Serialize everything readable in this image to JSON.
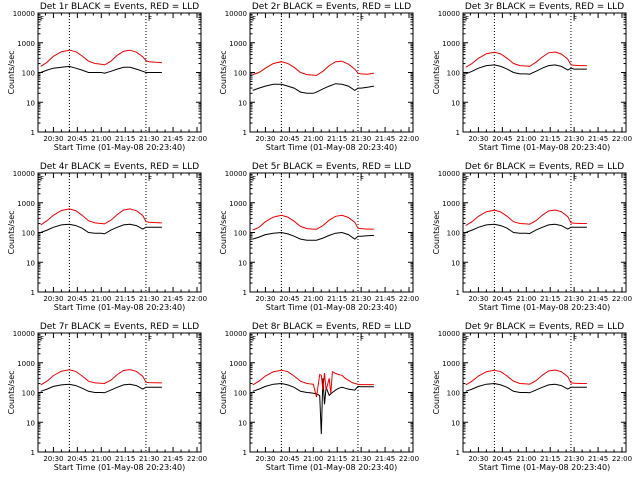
{
  "colors": {
    "events": "#000000",
    "lld": "#ee0000",
    "axes": "#000000",
    "marker": "#000000"
  },
  "x_tick_labels": [
    "20:30",
    "20:45",
    "21:00",
    "21:15",
    "21:30",
    "21:45",
    "22:00"
  ],
  "y_tick_labels": [
    "1",
    "10",
    "100",
    "1000",
    "10000"
  ],
  "y_axis_label": "Counts/sec",
  "chart_data": [
    {
      "type": "line",
      "title": "Det 1r BLACK = Events, RED = LLD",
      "xlabel": "Start Time (01-May-08 20:23:40)",
      "ylabel": "Counts/sec",
      "x_range_minutes": [
        20.33,
        98.0
      ],
      "ylim": [
        1,
        10000
      ],
      "y_scale": "log",
      "marker_label": "F",
      "vertical_lines_minutes": [
        40.0,
        88.0
      ],
      "marker_minutes": 88.0,
      "series": [
        {
          "name": "BLACK = Events",
          "x": [
            22,
            26,
            30,
            35,
            40,
            44,
            48,
            52,
            56,
            60,
            62,
            66,
            70,
            74,
            78,
            82,
            86,
            88,
            90,
            94,
            98
          ],
          "y": [
            100,
            120,
            140,
            150,
            160,
            140,
            120,
            100,
            100,
            100,
            95,
            110,
            130,
            150,
            150,
            130,
            110,
            100,
            100,
            100,
            100
          ]
        },
        {
          "name": "RED = LLD",
          "x": [
            22,
            26,
            30,
            35,
            40,
            44,
            48,
            52,
            56,
            60,
            62,
            66,
            70,
            74,
            78,
            82,
            86,
            88,
            90,
            94,
            98
          ],
          "y": [
            160,
            220,
            350,
            500,
            560,
            500,
            360,
            240,
            200,
            190,
            180,
            240,
            380,
            520,
            560,
            480,
            340,
            250,
            230,
            220,
            215
          ]
        }
      ]
    },
    {
      "type": "line",
      "title": "Det 2r BLACK = Events, RED = LLD",
      "xlabel": "Start Time (01-May-08 20:23:40)",
      "ylabel": "Counts/sec",
      "x_range_minutes": [
        20.33,
        98.0
      ],
      "ylim": [
        1,
        10000
      ],
      "y_scale": "log",
      "marker_label": "F",
      "vertical_lines_minutes": [
        40.0,
        88.0
      ],
      "marker_minutes": 88.0,
      "series": [
        {
          "name": "BLACK = Events",
          "x": [
            22,
            26,
            30,
            35,
            40,
            44,
            48,
            52,
            56,
            60,
            62,
            66,
            70,
            74,
            78,
            82,
            86,
            88,
            90,
            94,
            98
          ],
          "y": [
            25,
            30,
            35,
            40,
            40,
            35,
            30,
            22,
            20,
            20,
            22,
            28,
            35,
            42,
            40,
            35,
            25,
            30,
            30,
            32,
            35
          ]
        },
        {
          "name": "RED = LLD",
          "x": [
            22,
            26,
            30,
            35,
            40,
            44,
            48,
            52,
            56,
            60,
            62,
            66,
            70,
            74,
            78,
            82,
            86,
            88,
            90,
            94,
            98
          ],
          "y": [
            85,
            100,
            140,
            200,
            230,
            200,
            150,
            100,
            85,
            82,
            80,
            110,
            170,
            230,
            240,
            190,
            130,
            95,
            90,
            88,
            95
          ]
        }
      ]
    },
    {
      "type": "line",
      "title": "Det 3r BLACK = Events, RED = LLD",
      "xlabel": "Start Time (01-May-08 20:23:40)",
      "ylabel": "Counts/sec",
      "x_range_minutes": [
        20.33,
        98.0
      ],
      "ylim": [
        1,
        10000
      ],
      "y_scale": "log",
      "marker_label": "F",
      "vertical_lines_minutes": [
        40.0,
        88.0
      ],
      "marker_minutes": 88.0,
      "series": [
        {
          "name": "BLACK = Events",
          "x": [
            22,
            26,
            30,
            35,
            40,
            44,
            48,
            52,
            56,
            60,
            62,
            66,
            70,
            74,
            78,
            82,
            86,
            88,
            90,
            94,
            98
          ],
          "y": [
            90,
            110,
            140,
            170,
            180,
            160,
            130,
            100,
            90,
            90,
            88,
            110,
            140,
            170,
            180,
            160,
            120,
            140,
            130,
            130,
            130
          ]
        },
        {
          "name": "RED = LLD",
          "x": [
            22,
            26,
            30,
            35,
            40,
            44,
            48,
            52,
            56,
            60,
            62,
            66,
            70,
            74,
            78,
            82,
            86,
            88,
            90,
            94,
            98
          ],
          "y": [
            150,
            200,
            300,
            430,
            480,
            420,
            300,
            200,
            170,
            165,
            160,
            220,
            330,
            460,
            490,
            420,
            280,
            180,
            175,
            170,
            170
          ]
        }
      ]
    },
    {
      "type": "line",
      "title": "Det 4r BLACK = Events, RED = LLD",
      "xlabel": "Start Time (01-May-08 20:23:40)",
      "ylabel": "Counts/sec",
      "x_range_minutes": [
        20.33,
        98.0
      ],
      "ylim": [
        1,
        10000
      ],
      "y_scale": "log",
      "marker_label": "F",
      "vertical_lines_minutes": [
        40.0,
        88.0
      ],
      "marker_minutes": 88.0,
      "series": [
        {
          "name": "BLACK = Events",
          "x": [
            22,
            26,
            30,
            35,
            40,
            44,
            48,
            52,
            56,
            60,
            62,
            66,
            70,
            74,
            78,
            82,
            86,
            88,
            90,
            94,
            98
          ],
          "y": [
            100,
            120,
            150,
            180,
            190,
            170,
            140,
            100,
            95,
            95,
            90,
            120,
            150,
            180,
            190,
            170,
            130,
            150,
            150,
            150,
            150
          ]
        },
        {
          "name": "RED = LLD",
          "x": [
            22,
            26,
            30,
            35,
            40,
            44,
            48,
            52,
            56,
            60,
            62,
            66,
            70,
            74,
            78,
            82,
            86,
            88,
            90,
            94,
            98
          ],
          "y": [
            180,
            250,
            380,
            550,
            620,
            540,
            380,
            250,
            210,
            200,
            195,
            260,
            400,
            570,
            620,
            540,
            370,
            230,
            220,
            215,
            210
          ]
        }
      ]
    },
    {
      "type": "line",
      "title": "Det 5r BLACK = Events, RED = LLD",
      "xlabel": "Start Time (01-May-08 20:23:40)",
      "ylabel": "Counts/sec",
      "x_range_minutes": [
        20.33,
        98.0
      ],
      "ylim": [
        1,
        10000
      ],
      "y_scale": "log",
      "marker_label": "F",
      "vertical_lines_minutes": [
        40.0,
        88.0
      ],
      "marker_minutes": 88.0,
      "series": [
        {
          "name": "BLACK = Events",
          "x": [
            22,
            26,
            30,
            35,
            40,
            44,
            48,
            52,
            56,
            60,
            62,
            66,
            70,
            74,
            78,
            82,
            86,
            88,
            90,
            94,
            98
          ],
          "y": [
            60,
            70,
            85,
            95,
            100,
            90,
            75,
            60,
            55,
            55,
            55,
            65,
            80,
            95,
            100,
            85,
            60,
            75,
            75,
            78,
            80
          ]
        },
        {
          "name": "RED = LLD",
          "x": [
            22,
            26,
            30,
            35,
            40,
            44,
            48,
            52,
            56,
            60,
            62,
            66,
            70,
            74,
            78,
            82,
            86,
            88,
            90,
            94,
            98
          ],
          "y": [
            120,
            150,
            230,
            330,
            380,
            330,
            240,
            160,
            135,
            130,
            128,
            170,
            260,
            350,
            380,
            320,
            220,
            140,
            135,
            130,
            130
          ]
        }
      ]
    },
    {
      "type": "line",
      "title": "Det 6r BLACK = Events, RED = LLD",
      "xlabel": "Start Time (01-May-08 20:23:40)",
      "ylabel": "Counts/sec",
      "x_range_minutes": [
        20.33,
        98.0
      ],
      "ylim": [
        1,
        10000
      ],
      "y_scale": "log",
      "marker_label": "F",
      "vertical_lines_minutes": [
        40.0,
        88.0
      ],
      "marker_minutes": 88.0,
      "series": [
        {
          "name": "BLACK = Events",
          "x": [
            22,
            26,
            30,
            35,
            40,
            44,
            48,
            52,
            56,
            60,
            62,
            66,
            70,
            74,
            78,
            82,
            86,
            88,
            90,
            94,
            98
          ],
          "y": [
            100,
            120,
            150,
            180,
            190,
            170,
            140,
            100,
            95,
            95,
            92,
            120,
            150,
            180,
            190,
            170,
            130,
            150,
            150,
            150,
            150
          ]
        },
        {
          "name": "RED = LLD",
          "x": [
            22,
            26,
            30,
            35,
            40,
            44,
            48,
            52,
            56,
            60,
            62,
            66,
            70,
            74,
            78,
            82,
            86,
            88,
            90,
            94,
            98
          ],
          "y": [
            170,
            230,
            350,
            500,
            560,
            490,
            350,
            230,
            200,
            195,
            190,
            250,
            380,
            530,
            570,
            500,
            340,
            210,
            205,
            200,
            200
          ]
        }
      ]
    },
    {
      "type": "line",
      "title": "Det 7r BLACK = Events, RED = LLD",
      "xlabel": "Start Time (01-May-08 20:23:40)",
      "ylabel": "Counts/sec",
      "x_range_minutes": [
        20.33,
        98.0
      ],
      "ylim": [
        1,
        10000
      ],
      "y_scale": "log",
      "marker_label": "F",
      "vertical_lines_minutes": [
        40.0,
        88.0
      ],
      "marker_minutes": 88.0,
      "series": [
        {
          "name": "BLACK = Events",
          "x": [
            22,
            26,
            30,
            35,
            40,
            44,
            48,
            52,
            56,
            60,
            62,
            66,
            70,
            74,
            78,
            82,
            86,
            88,
            90,
            94,
            98
          ],
          "y": [
            110,
            130,
            160,
            180,
            190,
            170,
            140,
            110,
            100,
            100,
            98,
            120,
            150,
            180,
            190,
            170,
            130,
            150,
            150,
            150,
            150
          ]
        },
        {
          "name": "RED = LLD",
          "x": [
            22,
            26,
            30,
            35,
            40,
            44,
            48,
            52,
            56,
            60,
            62,
            66,
            70,
            74,
            78,
            82,
            86,
            88,
            90,
            94,
            98
          ],
          "y": [
            180,
            240,
            370,
            520,
            580,
            510,
            360,
            240,
            210,
            205,
            200,
            260,
            400,
            550,
            590,
            510,
            350,
            220,
            215,
            212,
            210
          ]
        }
      ]
    },
    {
      "type": "line",
      "title": "Det 8r BLACK = Events, RED = LLD",
      "xlabel": "Start Time (01-May-08 20:23:40)",
      "ylabel": "Counts/sec",
      "x_range_minutes": [
        20.33,
        98.0
      ],
      "ylim": [
        1,
        10000
      ],
      "y_scale": "log",
      "marker_label": "F",
      "vertical_lines_minutes": [
        40.0,
        88.0
      ],
      "marker_minutes": 88.0,
      "series": [
        {
          "name": "BLACK = Events",
          "x": [
            22,
            26,
            30,
            35,
            40,
            44,
            48,
            52,
            56,
            58,
            60,
            62,
            64,
            65,
            66,
            67,
            68,
            70,
            72,
            74,
            76,
            78,
            80,
            82,
            86,
            88,
            90,
            94,
            98
          ],
          "y": [
            110,
            130,
            160,
            190,
            200,
            180,
            150,
            110,
            100,
            98,
            95,
            90,
            80,
            4,
            300,
            40,
            150,
            80,
            100,
            120,
            140,
            150,
            140,
            130,
            120,
            160,
            155,
            155,
            155
          ]
        },
        {
          "name": "RED = LLD",
          "x": [
            22,
            26,
            30,
            35,
            40,
            44,
            48,
            52,
            56,
            58,
            60,
            62,
            64,
            65,
            66,
            67,
            68,
            70,
            71,
            72,
            74,
            76,
            78,
            80,
            82,
            84,
            86,
            88,
            90,
            94,
            98
          ],
          "y": [
            180,
            240,
            360,
            500,
            560,
            500,
            360,
            240,
            200,
            195,
            190,
            70,
            400,
            380,
            120,
            450,
            120,
            300,
            90,
            500,
            440,
            400,
            380,
            300,
            260,
            220,
            200,
            190,
            185,
            185,
            185
          ]
        }
      ]
    },
    {
      "type": "line",
      "title": "Det 9r BLACK = Events, RED = LLD",
      "xlabel": "Start Time (01-May-08 20:23:40)",
      "ylabel": "Counts/sec",
      "x_range_minutes": [
        20.33,
        98.0
      ],
      "ylim": [
        1,
        10000
      ],
      "y_scale": "log",
      "marker_label": "F",
      "vertical_lines_minutes": [
        40.0,
        88.0
      ],
      "marker_minutes": 88.0,
      "series": [
        {
          "name": "BLACK = Events",
          "x": [
            22,
            26,
            30,
            35,
            40,
            44,
            48,
            52,
            56,
            60,
            62,
            66,
            70,
            74,
            78,
            82,
            86,
            88,
            90,
            94,
            98
          ],
          "y": [
            110,
            130,
            160,
            190,
            200,
            180,
            150,
            110,
            100,
            100,
            98,
            120,
            150,
            180,
            190,
            170,
            130,
            150,
            150,
            150,
            150
          ]
        },
        {
          "name": "RED = LLD",
          "x": [
            22,
            26,
            30,
            35,
            40,
            44,
            48,
            52,
            56,
            60,
            62,
            66,
            70,
            74,
            78,
            82,
            86,
            88,
            90,
            94,
            98
          ],
          "y": [
            180,
            240,
            360,
            500,
            560,
            500,
            360,
            240,
            200,
            195,
            190,
            250,
            380,
            530,
            570,
            500,
            340,
            210,
            205,
            200,
            200
          ]
        }
      ]
    }
  ]
}
